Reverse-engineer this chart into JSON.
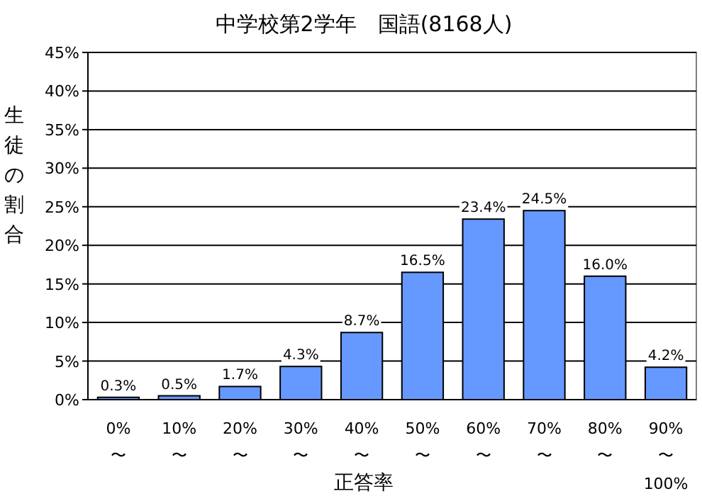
{
  "chart_data": {
    "type": "bar",
    "title": "中学校第2学年　国語(8168人)",
    "xlabel": "正答率",
    "ylabel": "生徒の割合",
    "categories": [
      "0%\n〜",
      "10%\n〜",
      "20%\n〜",
      "30%\n〜",
      "40%\n〜",
      "50%\n〜",
      "60%\n〜",
      "70%\n〜",
      "80%\n〜",
      "90%\n〜\n100%"
    ],
    "values": [
      0.3,
      0.5,
      1.7,
      4.3,
      8.7,
      16.5,
      23.4,
      24.5,
      16.0,
      4.2
    ],
    "value_labels": [
      "0.3%",
      "0.5%",
      "1.7%",
      "4.3%",
      "8.7%",
      "16.5%",
      "23.4%",
      "24.5%",
      "16.0%",
      "4.2%"
    ],
    "color": "#6699ff",
    "ylim": [
      0,
      45
    ],
    "yticks": [
      {
        "value": 0,
        "label": "0%"
      },
      {
        "value": 5,
        "label": "5%"
      },
      {
        "value": 10,
        "label": "10%"
      },
      {
        "value": 15,
        "label": "15%"
      },
      {
        "value": 20,
        "label": "20%"
      },
      {
        "value": 25,
        "label": "25%"
      },
      {
        "value": 30,
        "label": "30%"
      },
      {
        "value": 35,
        "label": "35%"
      },
      {
        "value": 40,
        "label": "40%"
      },
      {
        "value": 45,
        "label": "45%"
      }
    ],
    "grid": "y"
  }
}
